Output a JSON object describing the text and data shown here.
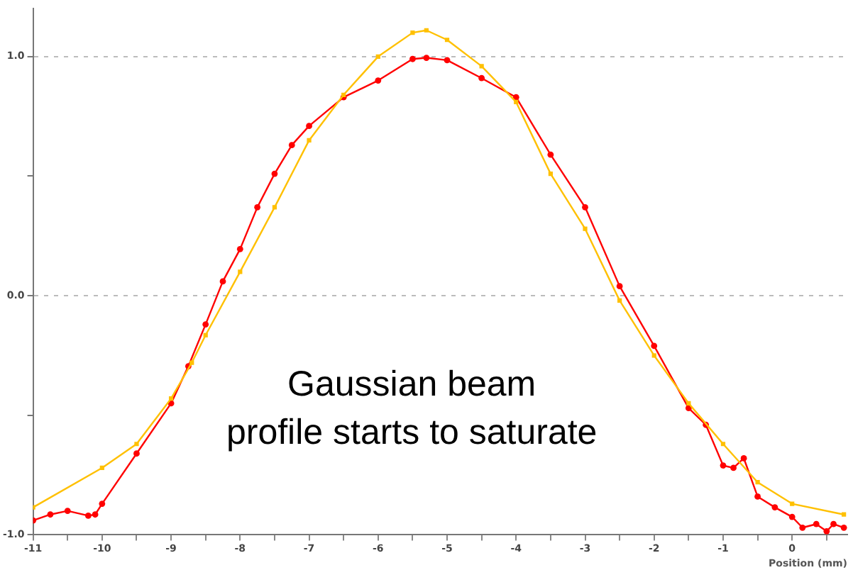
{
  "chart_data": {
    "type": "line",
    "xlabel": "Position (mm)",
    "annotations": [
      "Gaussian beam\nprofile starts to saturate"
    ],
    "xlim": [
      -11,
      0.8
    ],
    "ylim": [
      -1,
      1.2
    ],
    "xticks": [
      -11,
      {
        "value": -10.5,
        "label": null
      },
      -10,
      {
        "value": -9.5,
        "label": null
      },
      -9,
      {
        "value": -8.5,
        "label": null
      },
      -8,
      {
        "value": -7.5,
        "label": null
      },
      -7,
      {
        "value": -6.5,
        "label": null
      },
      -6,
      {
        "value": -5.5,
        "label": null
      },
      -5,
      {
        "value": -4.5,
        "label": null
      },
      -4,
      {
        "value": -3.5,
        "label": null
      },
      -3,
      {
        "value": -2.5,
        "label": null
      },
      -2,
      {
        "value": -1.5,
        "label": null
      },
      -1,
      {
        "value": -0.5,
        "label": null
      },
      0,
      {
        "value": 0.5,
        "label": null
      }
    ],
    "yticks": [
      {
        "value": -1,
        "label": "-1.0"
      },
      {
        "value": -0.5,
        "label": null
      },
      {
        "value": 0,
        "label": "0.0"
      },
      {
        "value": 0.5,
        "label": null
      },
      {
        "value": 1,
        "label": "1.0"
      }
    ],
    "grid": "y",
    "line_style": "solid",
    "series": [
      {
        "color": "#ffc000",
        "marker": "square",
        "x": [
          -11,
          -10,
          -9.5,
          -9,
          -8.7,
          -8.5,
          -8,
          -7.5,
          -7,
          -6.5,
          -6,
          -5.5,
          -5.3,
          -5,
          -4.5,
          -4,
          -3.5,
          -3,
          -2.5,
          -2,
          -1.5,
          -1,
          -0.5,
          0,
          0.75
        ],
        "values": [
          -0.885,
          -0.72,
          -0.62,
          -0.43,
          -0.28,
          -0.165,
          0.1,
          0.37,
          0.65,
          0.84,
          1.0,
          1.1,
          1.11,
          1.07,
          0.96,
          0.81,
          0.51,
          0.28,
          -0.02,
          -0.25,
          -0.45,
          -0.62,
          -0.78,
          -0.87,
          -0.915
        ]
      },
      {
        "color": "#ff0000",
        "marker": "circle",
        "x": [
          -11,
          -10.75,
          -10.5,
          -10.2,
          -10.1,
          -10,
          -9.5,
          -9,
          -8.75,
          -8.5,
          -8.25,
          -8,
          -7.75,
          -7.5,
          -7.25,
          -7,
          -6.5,
          -6,
          -5.5,
          -5.3,
          -5,
          -4.5,
          -4,
          -3.5,
          -3,
          -2.5,
          -2,
          -1.5,
          -1.25,
          -1,
          -0.85,
          -0.7,
          -0.5,
          -0.25,
          0,
          0.15,
          0.35,
          0.5,
          0.6,
          0.75
        ],
        "values": [
          -0.94,
          -0.915,
          -0.9,
          -0.92,
          -0.915,
          -0.87,
          -0.66,
          -0.45,
          -0.295,
          -0.12,
          0.06,
          0.195,
          0.37,
          0.51,
          0.63,
          0.71,
          0.83,
          0.9,
          0.99,
          0.995,
          0.985,
          0.91,
          0.83,
          0.59,
          0.37,
          0.04,
          -0.21,
          -0.47,
          -0.54,
          -0.71,
          -0.72,
          -0.68,
          -0.84,
          -0.885,
          -0.925,
          -0.97,
          -0.955,
          -0.985,
          -0.955,
          -0.97
        ]
      }
    ]
  }
}
